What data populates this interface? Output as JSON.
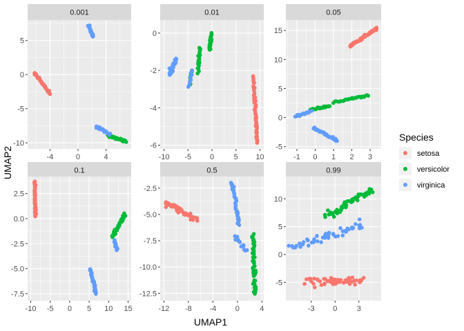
{
  "chart_data": {
    "type": "scatter",
    "xlabel": "UMAP1",
    "ylabel": "UMAP2",
    "legend": {
      "title": "Species",
      "position": "right",
      "entries": [
        {
          "label": "setosa",
          "color": "#F8766D"
        },
        {
          "label": "versicolor",
          "color": "#00BA38"
        },
        {
          "label": "virginica",
          "color": "#619CFF"
        }
      ]
    },
    "facets": [
      {
        "label": "0.001",
        "xlim": [
          -7.2,
          7.6
        ],
        "ylim": [
          -10.9,
          8.0
        ],
        "xticks": [
          {
            "v": -4,
            "t": "-4"
          },
          {
            "v": 0,
            "t": "0"
          },
          {
            "v": 4,
            "t": "4"
          }
        ],
        "yticks": [
          {
            "v": 5,
            "t": "5"
          },
          {
            "v": 0,
            "t": "0"
          },
          {
            "v": -5,
            "t": "-5"
          },
          {
            "v": -10,
            "t": "-10"
          }
        ],
        "series": [
          {
            "name": "setosa",
            "clusters": [
              {
                "x": [
                  -6.2,
                  -4.0
                ],
                "y": [
                  0.2,
                  -2.8
                ],
                "n": 50,
                "s": 0.2
              }
            ]
          },
          {
            "name": "versicolor",
            "clusters": [
              {
                "x": [
                  4.2,
                  6.8
                ],
                "y": [
                  -8.9,
                  -9.8
                ],
                "n": 50,
                "s": 0.25
              }
            ]
          },
          {
            "name": "virginica",
            "clusters": [
              {
                "x": [
                  1.5,
                  2.2
                ],
                "y": [
                  7.2,
                  5.5
                ],
                "n": 30,
                "s": 0.2
              },
              {
                "x": [
                  2.6,
                  4.6
                ],
                "y": [
                  -7.6,
                  -8.7
                ],
                "n": 20,
                "s": 0.3
              }
            ]
          }
        ]
      },
      {
        "label": "0.01",
        "xlim": [
          -10.8,
          10.8
        ],
        "ylim": [
          -6.2,
          0.7
        ],
        "xticks": [
          {
            "v": -10,
            "t": "-10"
          },
          {
            "v": -5,
            "t": "-5"
          },
          {
            "v": 0,
            "t": "0"
          },
          {
            "v": 5,
            "t": "5"
          },
          {
            "v": 10,
            "t": "10"
          }
        ],
        "yticks": [
          {
            "v": 0,
            "t": "0"
          },
          {
            "v": -2,
            "t": "-2"
          },
          {
            "v": -4,
            "t": "-4"
          },
          {
            "v": -6,
            "t": "-6"
          }
        ],
        "series": [
          {
            "name": "setosa",
            "clusters": [
              {
                "x": [
                  8.6,
                  9.5
                ],
                "y": [
                  -2.3,
                  -5.9
                ],
                "n": 50,
                "s": 0.3
              }
            ]
          },
          {
            "name": "versicolor",
            "clusters": [
              {
                "x": [
                  -0.1,
                  -0.5
                ],
                "y": [
                  0.0,
                  -0.9
                ],
                "n": 20,
                "s": 0.25
              },
              {
                "x": [
                  -2.6,
                  -3.0
                ],
                "y": [
                  -0.8,
                  -2.1
                ],
                "n": 20,
                "s": 0.3
              },
              {
                "x": [
                  -4.3,
                  -4.6
                ],
                "y": [
                  -2.0,
                  -2.8
                ],
                "n": 10,
                "s": 0.2
              }
            ]
          },
          {
            "name": "virginica",
            "clusters": [
              {
                "x": [
                  -7.5,
                  -8.8
                ],
                "y": [
                  -1.4,
                  -2.2
                ],
                "n": 40,
                "s": 0.45
              },
              {
                "x": [
                  -4.2,
                  -4.8
                ],
                "y": [
                  -2.0,
                  -2.9
                ],
                "n": 10,
                "s": 0.25
              }
            ]
          }
        ]
      },
      {
        "label": "0.05",
        "xlim": [
          -1.6,
          3.6
        ],
        "ylim": [
          -5.4,
          16.8
        ],
        "xticks": [
          {
            "v": -1,
            "t": "-1"
          },
          {
            "v": 0,
            "t": "0"
          },
          {
            "v": 1,
            "t": "1"
          },
          {
            "v": 2,
            "t": "2"
          },
          {
            "v": 3,
            "t": "3"
          }
        ],
        "yticks": [
          {
            "v": 15,
            "t": "15"
          },
          {
            "v": 10,
            "t": "10"
          },
          {
            "v": 5,
            "t": "5"
          },
          {
            "v": 0,
            "t": "0"
          },
          {
            "v": -5,
            "t": "-5"
          }
        ],
        "series": [
          {
            "name": "setosa",
            "clusters": [
              {
                "x": [
                  1.9,
                  3.4
                ],
                "y": [
                  12.3,
                  15.4
                ],
                "n": 50,
                "s": 0.25
              }
            ]
          },
          {
            "name": "versicolor",
            "clusters": [
              {
                "x": [
                  -0.3,
                  0.8
                ],
                "y": [
                  1.3,
                  2.0
                ],
                "n": 25,
                "s": 0.25
              },
              {
                "x": [
                  1.0,
                  2.9
                ],
                "y": [
                  2.6,
                  3.9
                ],
                "n": 25,
                "s": 0.2
              }
            ]
          },
          {
            "name": "virginica",
            "clusters": [
              {
                "x": [
                  -1.1,
                  -0.2
                ],
                "y": [
                  0.2,
                  1.1
                ],
                "n": 15,
                "s": 0.2
              },
              {
                "x": [
                  -0.1,
                  1.2
                ],
                "y": [
                  -1.8,
                  -4.0
                ],
                "n": 35,
                "s": 0.25
              }
            ]
          }
        ]
      },
      {
        "label": "0.1",
        "xlim": [
          -10.8,
          15.8
        ],
        "ylim": [
          -8.2,
          4.2
        ],
        "xticks": [
          {
            "v": -10,
            "t": "-10"
          },
          {
            "v": -5,
            "t": "-5"
          },
          {
            "v": 0,
            "t": "0"
          },
          {
            "v": 5,
            "t": "5"
          },
          {
            "v": 10,
            "t": "10"
          },
          {
            "v": 15,
            "t": "15"
          }
        ],
        "yticks": [
          {
            "v": 2.5,
            "t": "2.5"
          },
          {
            "v": 0,
            "t": "0.0"
          },
          {
            "v": -2.5,
            "t": "-2.5"
          },
          {
            "v": -5,
            "t": "-5.0"
          },
          {
            "v": -7.5,
            "t": "-7.5"
          }
        ],
        "series": [
          {
            "name": "setosa",
            "clusters": [
              {
                "x": [
                  -9.0,
                  -8.8
                ],
                "y": [
                  3.7,
                  0.2
                ],
                "n": 50,
                "s": 0.2
              }
            ]
          },
          {
            "name": "versicolor",
            "clusters": [
              {
                "x": [
                  11.0,
                  14.2
                ],
                "y": [
                  -1.8,
                  0.4
                ],
                "n": 50,
                "s": 0.3
              }
            ]
          },
          {
            "name": "virginica",
            "clusters": [
              {
                "x": [
                  11.5,
                  12.2
                ],
                "y": [
                  -2.2,
                  -3.2
                ],
                "n": 15,
                "s": 0.25
              },
              {
                "x": [
                  5.3,
                  6.8
                ],
                "y": [
                  -5.0,
                  -7.5
                ],
                "n": 35,
                "s": 0.3
              }
            ]
          }
        ]
      },
      {
        "label": "0.5",
        "xlim": [
          -12.6,
          4.3
        ],
        "ylim": [
          -13.2,
          -1.4
        ],
        "xticks": [
          {
            "v": -12,
            "t": "-12"
          },
          {
            "v": -8,
            "t": "-8"
          },
          {
            "v": -4,
            "t": "-4"
          },
          {
            "v": 0,
            "t": "0"
          },
          {
            "v": 4,
            "t": "4"
          }
        ],
        "yticks": [
          {
            "v": -2.5,
            "t": "-2.5"
          },
          {
            "v": -5,
            "t": "-5.0"
          },
          {
            "v": -7.5,
            "t": "-7.5"
          },
          {
            "v": -10,
            "t": "-10.0"
          },
          {
            "v": -12.5,
            "t": "-12.5"
          }
        ],
        "series": [
          {
            "name": "setosa",
            "clusters": [
              {
                "x": [
                  -11.5,
                  -6.8
                ],
                "y": [
                  -4.0,
                  -5.5
                ],
                "n": 50,
                "s": 0.6
              }
            ]
          },
          {
            "name": "versicolor",
            "clusters": [
              {
                "x": [
                  2.5,
                  2.8
                ],
                "y": [
                  -7.0,
                  -12.6
                ],
                "n": 50,
                "s": 0.5
              }
            ]
          },
          {
            "name": "virginica",
            "clusters": [
              {
                "x": [
                  -0.9,
                  0.3
                ],
                "y": [
                  -1.9,
                  -6.0
                ],
                "n": 35,
                "s": 0.4
              },
              {
                "x": [
                  -0.4,
                  1.4
                ],
                "y": [
                  -7.0,
                  -8.5
                ],
                "n": 15,
                "s": 0.4
              }
            ]
          }
        ]
      },
      {
        "label": "0.99",
        "xlim": [
          -6.2,
          5.8
        ],
        "ylim": [
          -8.3,
          14.0
        ],
        "xticks": [
          {
            "v": -3,
            "t": "-3"
          },
          {
            "v": 0,
            "t": "0"
          },
          {
            "v": 3,
            "t": "3"
          }
        ],
        "yticks": [
          {
            "v": 10,
            "t": "10"
          },
          {
            "v": 5,
            "t": "5"
          },
          {
            "v": 0,
            "t": "0"
          },
          {
            "v": -5,
            "t": "-5"
          }
        ],
        "series": [
          {
            "name": "setosa",
            "clusters": [
              {
                "x": [
                  -3.5,
                  3.5
                ],
                "y": [
                  -4.8,
                  -4.8
                ],
                "n": 50,
                "s": 0.9
              }
            ]
          },
          {
            "name": "versicolor",
            "clusters": [
              {
                "x": [
                  -1.2,
                  4.8
                ],
                "y": [
                  7.0,
                  11.6
                ],
                "n": 50,
                "s": 1.0
              }
            ]
          },
          {
            "name": "virginica",
            "clusters": [
              {
                "x": [
                  -5.5,
                  3.5
                ],
                "y": [
                  1.2,
                  5.5
                ],
                "n": 50,
                "s": 1.0
              }
            ]
          }
        ]
      }
    ]
  }
}
